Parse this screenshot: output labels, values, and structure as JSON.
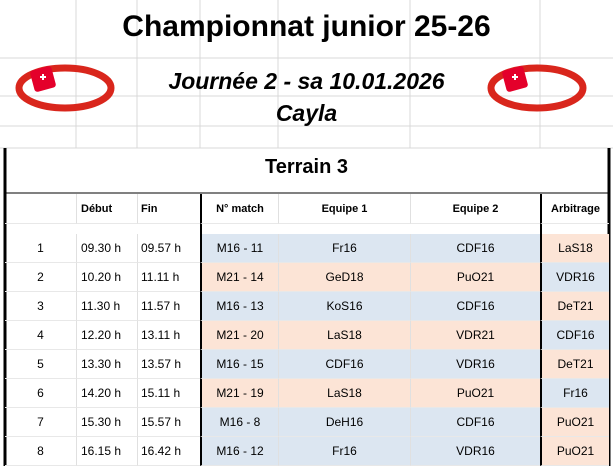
{
  "header": {
    "title": "Championnat junior 25-26",
    "subtitle": "Journée 2 - sa 10.01.2026",
    "location": "Cayla"
  },
  "table": {
    "title": "Terrain 3",
    "columns": [
      "",
      "Début",
      "Fin",
      "N° match",
      "Equipe 1",
      "Equipe 2",
      "Arbitrage"
    ],
    "rows": [
      [
        "1",
        "09.30 h",
        "09.57 h",
        "M16 - 11",
        "Fr16",
        "CDF16",
        "LaS18"
      ],
      [
        "2",
        "10.20 h",
        "11.11 h",
        "M21 - 14",
        "GeD18",
        "PuO21",
        "VDR16"
      ],
      [
        "3",
        "11.30 h",
        "11.57 h",
        "M16 - 13",
        "KoS16",
        "CDF16",
        "DeT21"
      ],
      [
        "4",
        "12.20 h",
        "13.11 h",
        "M21 - 20",
        "LaS18",
        "VDR21",
        "CDF16"
      ],
      [
        "5",
        "13.30 h",
        "13.57 h",
        "M16 - 15",
        "CDF16",
        "VDR16",
        "DeT21"
      ],
      [
        "6",
        "14.20 h",
        "15.11 h",
        "M21 - 19",
        "LaS18",
        "PuO21",
        "Fr16"
      ],
      [
        "7",
        "15.30 h",
        "15.57 h",
        "M16 - 8",
        "DeH16",
        "CDF16",
        "PuO21"
      ],
      [
        "8",
        "16.15 h",
        "16.42 h",
        "M16 - 12",
        "Fr16",
        "VDR16",
        "PuO21"
      ]
    ]
  }
}
